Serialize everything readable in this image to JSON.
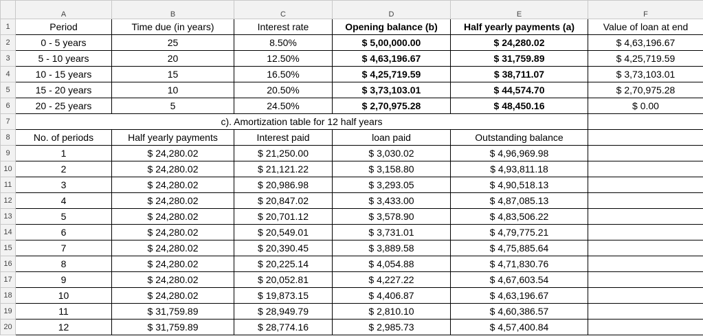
{
  "column_headers": [
    "A",
    "B",
    "C",
    "D",
    "E",
    "F"
  ],
  "row_numbers": [
    "1",
    "2",
    "3",
    "4",
    "5",
    "6",
    "7",
    "8",
    "9",
    "10",
    "11",
    "12",
    "13",
    "14",
    "15",
    "16",
    "17",
    "18",
    "19",
    "20"
  ],
  "summary": {
    "header": [
      "Period",
      "Time due (in years)",
      "Interest rate",
      "Opening balance (b)",
      "Half yearly payments (a)",
      "Value of loan at end"
    ],
    "rows": [
      [
        "0 - 5 years",
        "25",
        "8.50%",
        "$ 5,00,000.00",
        "$ 24,280.02",
        "$ 4,63,196.67"
      ],
      [
        "5 - 10 years",
        "20",
        "12.50%",
        "$ 4,63,196.67",
        "$ 31,759.89",
        "$ 4,25,719.59"
      ],
      [
        "10 - 15 years",
        "15",
        "16.50%",
        "$ 4,25,719.59",
        "$ 38,711.07",
        "$ 3,73,103.01"
      ],
      [
        "15 - 20 years",
        "10",
        "20.50%",
        "$ 3,73,103.01",
        "$ 44,574.70",
        "$ 2,70,975.28"
      ],
      [
        "20 - 25 years",
        "5",
        "24.50%",
        "$ 2,70,975.28",
        "$ 48,450.16",
        "$ 0.00"
      ]
    ]
  },
  "amortization": {
    "title": "c). Amortization table for 12 half years",
    "header": [
      "No. of periods",
      "Half yearly payments",
      "Interest paid",
      "loan paid",
      "Outstanding balance"
    ],
    "rows": [
      [
        "1",
        "$ 24,280.02",
        "$ 21,250.00",
        "$ 3,030.02",
        "$ 4,96,969.98"
      ],
      [
        "2",
        "$ 24,280.02",
        "$ 21,121.22",
        "$ 3,158.80",
        "$ 4,93,811.18"
      ],
      [
        "3",
        "$ 24,280.02",
        "$ 20,986.98",
        "$ 3,293.05",
        "$ 4,90,518.13"
      ],
      [
        "4",
        "$ 24,280.02",
        "$ 20,847.02",
        "$ 3,433.00",
        "$ 4,87,085.13"
      ],
      [
        "5",
        "$ 24,280.02",
        "$ 20,701.12",
        "$ 3,578.90",
        "$ 4,83,506.22"
      ],
      [
        "6",
        "$ 24,280.02",
        "$ 20,549.01",
        "$ 3,731.01",
        "$ 4,79,775.21"
      ],
      [
        "7",
        "$ 24,280.02",
        "$ 20,390.45",
        "$ 3,889.58",
        "$ 4,75,885.64"
      ],
      [
        "8",
        "$ 24,280.02",
        "$ 20,225.14",
        "$ 4,054.88",
        "$ 4,71,830.76"
      ],
      [
        "9",
        "$ 24,280.02",
        "$ 20,052.81",
        "$ 4,227.22",
        "$ 4,67,603.54"
      ],
      [
        "10",
        "$ 24,280.02",
        "$ 19,873.15",
        "$ 4,406.87",
        "$ 4,63,196.67"
      ],
      [
        "11",
        "$ 31,759.89",
        "$ 28,949.79",
        "$ 2,810.10",
        "$ 4,60,386.57"
      ],
      [
        "12",
        "$ 31,759.89",
        "$ 28,774.16",
        "$ 2,985.73",
        "$ 4,57,400.84"
      ]
    ]
  }
}
